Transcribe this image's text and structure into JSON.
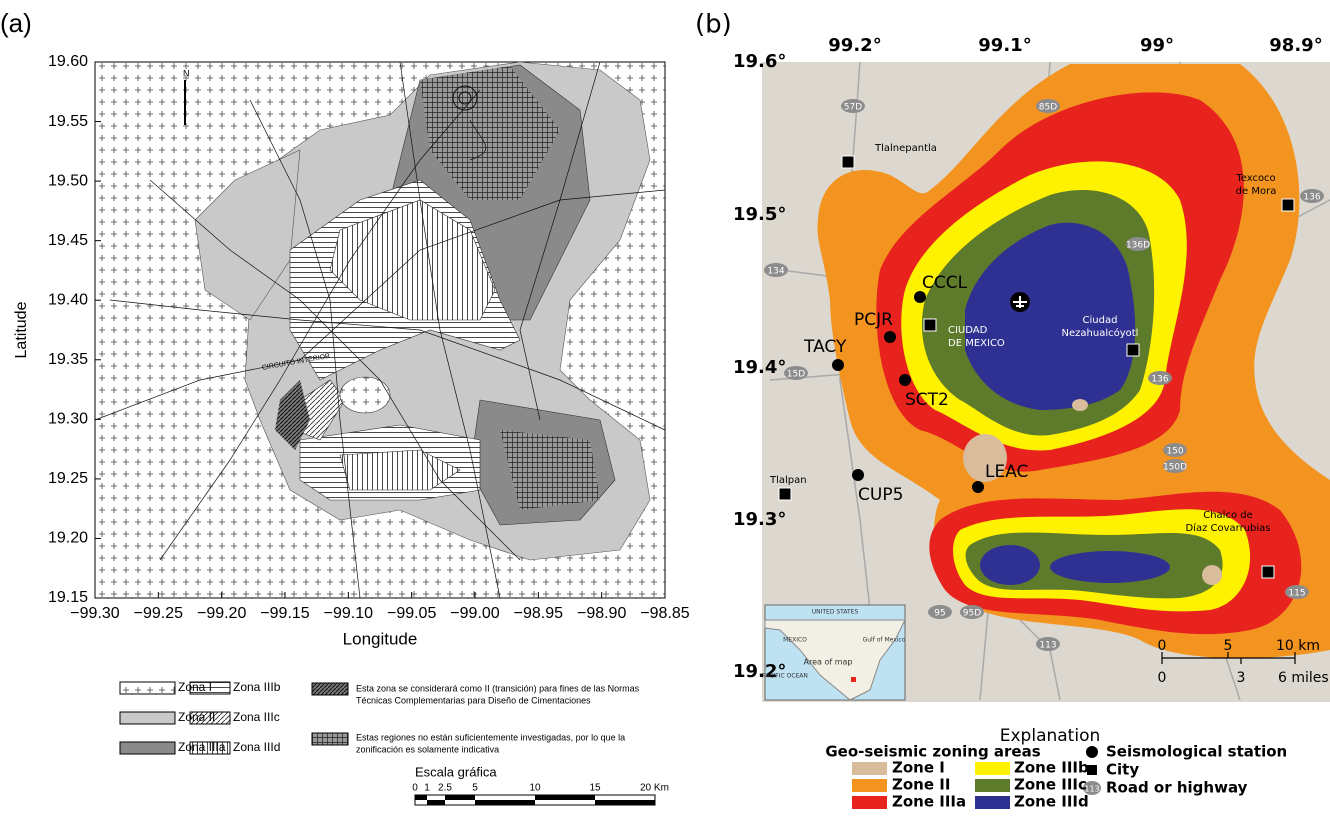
{
  "panel_a": {
    "label": "(a)",
    "y_axis_label": "Latitude",
    "x_axis_label": "Longitude",
    "yticks": [
      "19.60",
      "19.55",
      "19.50",
      "19.45",
      "19.40",
      "19.35",
      "19.30",
      "19.25",
      "19.20",
      "19.15"
    ],
    "xticks": [
      "−99.30",
      "−99.25",
      "−99.20",
      "−99.15",
      "−99.10",
      "−99.05",
      "−99.00",
      "−98.95",
      "−98.90",
      "−98.85"
    ],
    "map_labels": [
      "N",
      "CIRCUITO INTERIOR"
    ],
    "zones": [
      "Zona I",
      "Zona II",
      "Zona IIIa",
      "Zona IIIb",
      "Zona IIIc",
      "Zona IIId"
    ],
    "notes": [
      [
        "Esta zona se considerará como II (transición) para fines de las Normas",
        "Técnicas Complementarias para Diseño de Cimentaciones"
      ],
      [
        "Estas regiones no están suficientemente investigadas, por lo que la",
        "zonificación es solamente indicativa"
      ]
    ],
    "scale": {
      "title": "Escala gráfica",
      "ticks": [
        "0",
        "1",
        "2.5",
        "5",
        "10",
        "15",
        "20 Km"
      ]
    }
  },
  "panel_b": {
    "label": "(b)",
    "xticks": [
      "99.2°",
      "99.1°",
      "99°",
      "98.9°"
    ],
    "yticks": [
      "19.6°",
      "19.5°",
      "19.4°",
      "19.3°",
      "19.2°"
    ],
    "cities": [
      {
        "lines": [
          "Tlalnepantla"
        ]
      },
      {
        "lines": [
          "Texcoco",
          "de Mora"
        ]
      },
      {
        "lines": [
          "CIUDAD",
          "DE MEXICO"
        ]
      },
      {
        "lines": [
          "Ciudad",
          "Nezahualcóyotl"
        ]
      },
      {
        "lines": [
          "Tlalpan"
        ]
      },
      {
        "lines": [
          "Chalco de",
          "Díaz Covarrubias"
        ]
      }
    ],
    "stations": [
      "CCCL",
      "PCJR",
      "TACY",
      "SCT2",
      "LEAC",
      "CUP5"
    ],
    "roads": [
      "57D",
      "85D",
      "134",
      "15D",
      "136D",
      "136",
      "136",
      "150",
      "150D",
      "95",
      "95D",
      "113",
      "115"
    ],
    "inset": {
      "labels": [
        "UNITED STATES",
        "MEXICO",
        "Gulf of Mexico",
        "PACIFIC OCEAN",
        "Area of map"
      ]
    },
    "scale": {
      "km": [
        "0",
        "5",
        "10 km"
      ],
      "miles": [
        "0",
        "3",
        "6 miles"
      ]
    },
    "legend": {
      "title": "Explanation",
      "zones_title": "Geo-seismic zoning areas",
      "zones": [
        "Zone I",
        "Zone II",
        "Zone IIIa",
        "Zone IIIb",
        "Zone IIIc",
        "Zone IIId"
      ],
      "symbols": [
        "Seismological station",
        "City",
        "Road or highway"
      ],
      "road_badge": "113"
    }
  }
}
